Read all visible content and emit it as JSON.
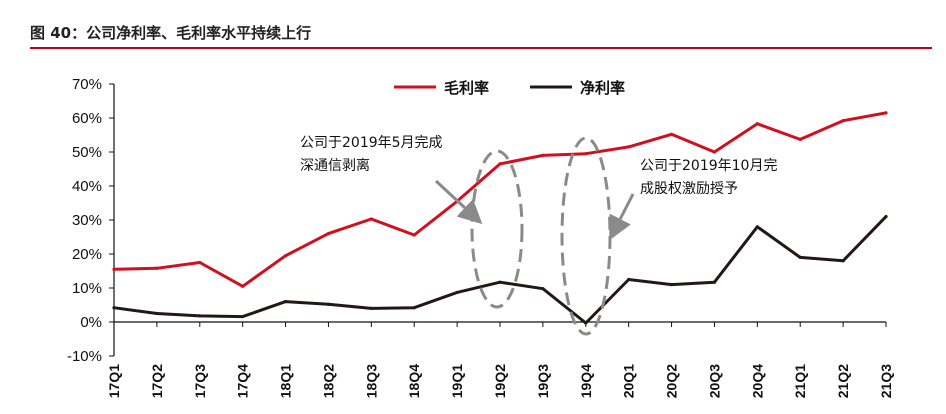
{
  "figure": {
    "title": "图 40：公司净利率、毛利率水平持续上行"
  },
  "chart_data": {
    "type": "line",
    "categories": [
      "17Q1",
      "17Q2",
      "17Q3",
      "17Q4",
      "18Q1",
      "18Q2",
      "18Q3",
      "18Q4",
      "19Q1",
      "19Q2",
      "19Q3",
      "19Q4",
      "20Q1",
      "20Q2",
      "20Q3",
      "20Q4",
      "21Q1",
      "21Q2",
      "21Q3"
    ],
    "series": [
      {
        "name": "毛利率",
        "color": "#d0101f",
        "values": [
          15.5,
          15.8,
          17.5,
          10.5,
          19.5,
          26.0,
          30.3,
          25.6,
          35.5,
          46.5,
          49.0,
          49.5,
          51.5,
          55.2,
          50.0,
          58.3,
          53.7,
          59.2,
          61.5
        ]
      },
      {
        "name": "净利率",
        "color": "#231815",
        "values": [
          4.2,
          2.5,
          1.8,
          1.6,
          6.0,
          5.2,
          4.0,
          4.2,
          8.7,
          11.7,
          9.8,
          -0.3,
          12.5,
          11.0,
          11.7,
          28.0,
          19.0,
          18.0,
          31.0
        ]
      }
    ],
    "ylim": [
      -10,
      70
    ],
    "yticks": [
      "-10%",
      "0%",
      "10%",
      "20%",
      "30%",
      "40%",
      "50%",
      "60%",
      "70%"
    ],
    "legend": "top-center",
    "annotations": [
      {
        "lines": [
          "公司于2019年5月完成",
          "深通信剥离"
        ]
      },
      {
        "lines": [
          "公司于2019年10月完",
          "成股权激励授予"
        ]
      }
    ]
  }
}
